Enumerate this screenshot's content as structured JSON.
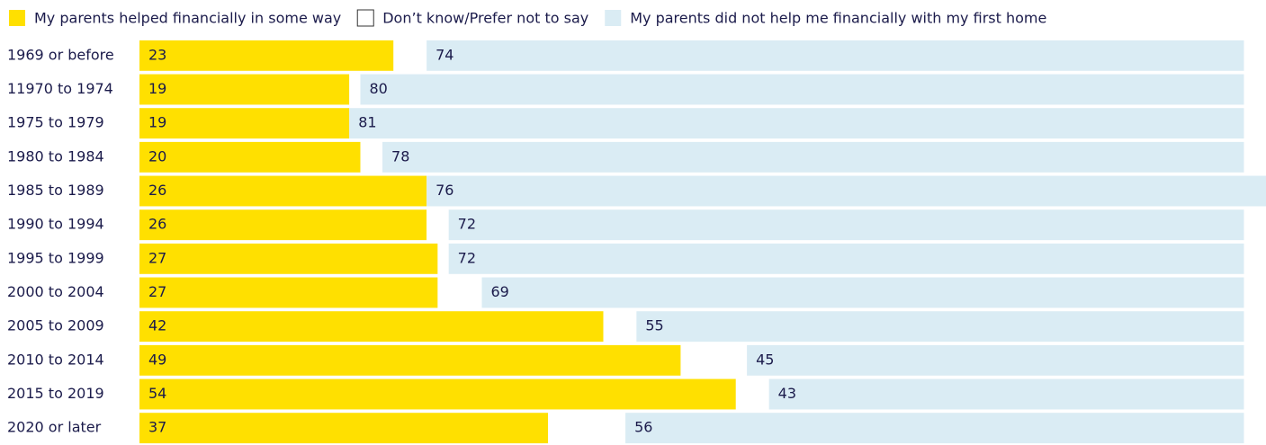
{
  "chart_data": {
    "type": "stacked_barh",
    "categories": [
      "1969 or before",
      "11970 to 1974",
      "1975 to 1979",
      "1980 to 1984",
      "1985 to 1989",
      "1990 to 1994",
      "1995 to 1999",
      "2000 to 2004",
      "2005 to 2009",
      "2010 to 2014",
      "2015 to 2019",
      "2020 or later"
    ],
    "series": [
      {
        "name": "My parents helped financially in some way",
        "color": "#ffe000",
        "values": [
          23,
          19,
          19,
          20,
          26,
          26,
          27,
          27,
          42,
          49,
          54,
          37
        ],
        "show_labels": true
      },
      {
        "name": "Don’t know/Prefer not to say",
        "color": "#ffffff",
        "edgecolor": "#333333",
        "values": [
          3,
          1,
          0,
          2,
          0,
          2,
          1,
          4,
          3,
          6,
          3,
          7
        ],
        "show_labels": false
      },
      {
        "name": "My parents did not help me financially with my first home",
        "color": "#daecf4",
        "values": [
          74,
          80,
          81,
          78,
          76,
          72,
          72,
          69,
          55,
          45,
          43,
          56
        ],
        "show_labels": true
      }
    ],
    "xlim": [
      0,
      102
    ]
  }
}
